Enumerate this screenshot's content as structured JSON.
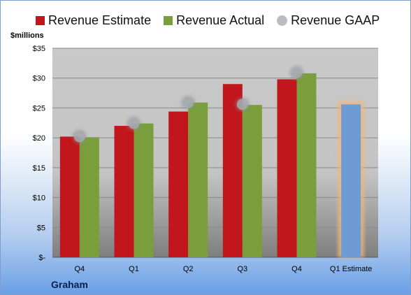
{
  "chart_data": {
    "type": "bar",
    "ylabel": "$millions",
    "ylim": [
      0,
      35
    ],
    "yticks": [
      "$-",
      "$5",
      "$10",
      "$15",
      "$20",
      "$25",
      "$30",
      "$35"
    ],
    "categories": [
      "Q4",
      "Q1",
      "Q2",
      "Q3",
      "Q4",
      "Q1 Estimate"
    ],
    "series": [
      {
        "name": "Revenue Estimate",
        "type": "bar",
        "color": "#c0161c",
        "values": [
          20.2,
          22.0,
          24.4,
          29.0,
          29.8,
          null
        ]
      },
      {
        "name": "Revenue Actual",
        "type": "bar",
        "color": "#7a9e3c",
        "values": [
          20.1,
          22.4,
          25.9,
          25.5,
          30.8,
          null
        ]
      },
      {
        "name": "Revenue GAAP",
        "type": "scatter",
        "color": "#a8acb3",
        "values": [
          20.2,
          22.4,
          25.9,
          25.6,
          30.9,
          null
        ]
      },
      {
        "name": "Q1 Estimate",
        "type": "bar",
        "color": "#6f9bd4",
        "highlight": "#f0b87a",
        "values": [
          null,
          null,
          null,
          null,
          null,
          25.6
        ]
      }
    ],
    "legend": "top",
    "grid": true
  },
  "footer": {
    "company": "Graham"
  }
}
